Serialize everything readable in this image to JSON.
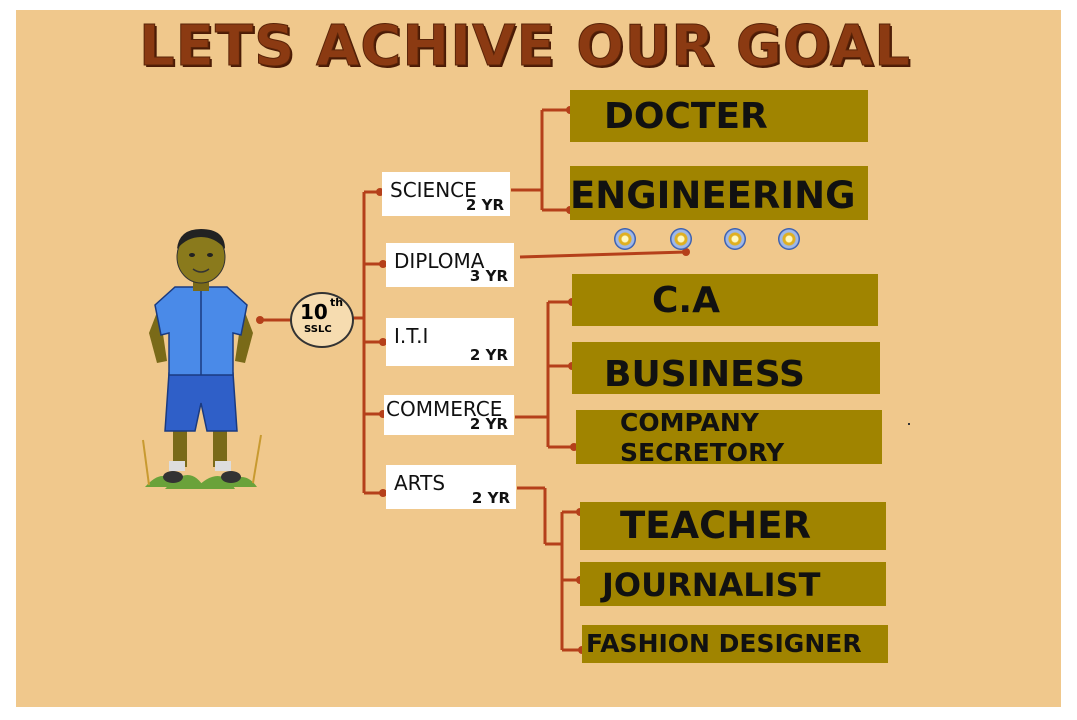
{
  "title": "LETS ACHIVE OUR GOAL",
  "hub": {
    "number": "10",
    "superscript": "th",
    "label": "SSLC"
  },
  "streams": [
    {
      "name": "SCIENCE",
      "duration": "2 YR"
    },
    {
      "name": "DIPLOMA",
      "duration": "3 YR"
    },
    {
      "name": "I.T.I",
      "duration": "2 YR"
    },
    {
      "name": "COMMERCE",
      "duration": "2 YR"
    },
    {
      "name": "ARTS",
      "duration": "2 YR"
    }
  ],
  "careers": {
    "science": [
      "DOCTER",
      "ENGINEERING"
    ],
    "commerce": [
      "C.A",
      "BUSINESS",
      "COMPANY",
      "SECRETORY"
    ],
    "arts": [
      "TEACHER",
      "JOURNALIST",
      "FASHION DESIGNER"
    ]
  },
  "colors": {
    "background": "#f0c88c",
    "title": "#8b3a12",
    "career_box": "#a08400",
    "connector": "#b5401a"
  },
  "icons": [
    "student-illustration",
    "diploma-option-icon"
  ]
}
